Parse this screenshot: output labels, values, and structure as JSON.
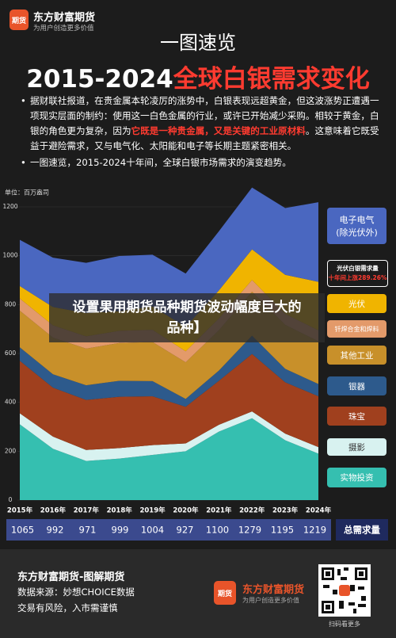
{
  "header": {
    "logo_text": "期货",
    "brand": "东方财富期货",
    "slogan": "为用户创造更多价值"
  },
  "title": "一图速览",
  "headline": {
    "years": "2015-2024",
    "subject": "全球白银需求变化"
  },
  "bullets": [
    [
      "据财联社报道，在贵金属本轮凌厉的涨势中，白银表现远超黄金，但这波涨势正遭遇一项现实层面的制约：使用这一白色金属的行业，或许已开始减少采购。相较于黄金，白银的角色更为复杂，因为",
      "它既是一种贵金属，又是关键的工业原材料",
      "。这意味着它既受益于避险需求，又与电气化、太阳能和电子等长期主题紧密相关。"
    ],
    [
      "一图速览，2015-2024十年间，全球白银市场需求的演变趋势。"
    ]
  ],
  "chart_data": {
    "type": "area",
    "stacked": true,
    "unit": "单位：百万盎司",
    "x": [
      "2015年",
      "2016年",
      "2017年",
      "2018年",
      "2019年",
      "2020年",
      "2021年",
      "2022年",
      "2023年",
      "2024年"
    ],
    "ylim": [
      0,
      1200
    ],
    "yticks": [
      0,
      200,
      400,
      600,
      800,
      1000,
      1200
    ],
    "grid": true,
    "series": [
      {
        "name": "实物投资",
        "color": "#35bfb0",
        "values": [
          310,
          210,
          160,
          170,
          185,
          200,
          280,
          335,
          245,
          190
        ]
      },
      {
        "name": "摄影",
        "color": "#d8f2f0",
        "values": [
          45,
          50,
          45,
          43,
          40,
          32,
          28,
          28,
          27,
          27
        ]
      },
      {
        "name": "珠宝",
        "color": "#a0401e",
        "values": [
          215,
          200,
          205,
          210,
          200,
          150,
          180,
          235,
          210,
          208
        ]
      },
      {
        "name": "银器",
        "color": "#2d5a8c",
        "values": [
          55,
          55,
          60,
          65,
          62,
          32,
          42,
          75,
          55,
          50
        ]
      },
      {
        "name": "其他工业",
        "color": "#c8902a",
        "values": [
          150,
          150,
          150,
          155,
          160,
          150,
          165,
          180,
          180,
          175
        ]
      },
      {
        "name": "钎焊合金和焊料",
        "color": "#e39a6a",
        "values": [
          50,
          50,
          50,
          50,
          50,
          45,
          48,
          48,
          45,
          45
        ]
      },
      {
        "name": "光伏",
        "color": "#f0b400",
        "values": [
          51,
          75,
          95,
          80,
          95,
          100,
          115,
          125,
          160,
          198
        ]
      },
      {
        "name": "电子电气(除光伏外)",
        "color": "#4a67c0",
        "values": [
          189,
          202,
          206,
          226,
          212,
          218,
          242,
          253,
          273,
          326
        ]
      }
    ],
    "annotation": [
      "光伏白银需求量",
      "十年间上涨289.26%"
    ],
    "total_label": "总需求量",
    "totals": [
      1065,
      992,
      971,
      999,
      1004,
      927,
      1100,
      1279,
      1195,
      1219
    ]
  },
  "overlay_text": [
    "设置果用期货品种期货波动幅度巨大的",
    "品种】"
  ],
  "footer": {
    "title": "东方财富期货-图解期货",
    "source": "数据来源：妙想CHOICE数据",
    "risk": "交易有风险，入市需谨慎",
    "logo_text": "期货",
    "brand": "东方财富期货",
    "slogan": "为用户创造更多价值",
    "qr_caption": "扫码看更多"
  }
}
